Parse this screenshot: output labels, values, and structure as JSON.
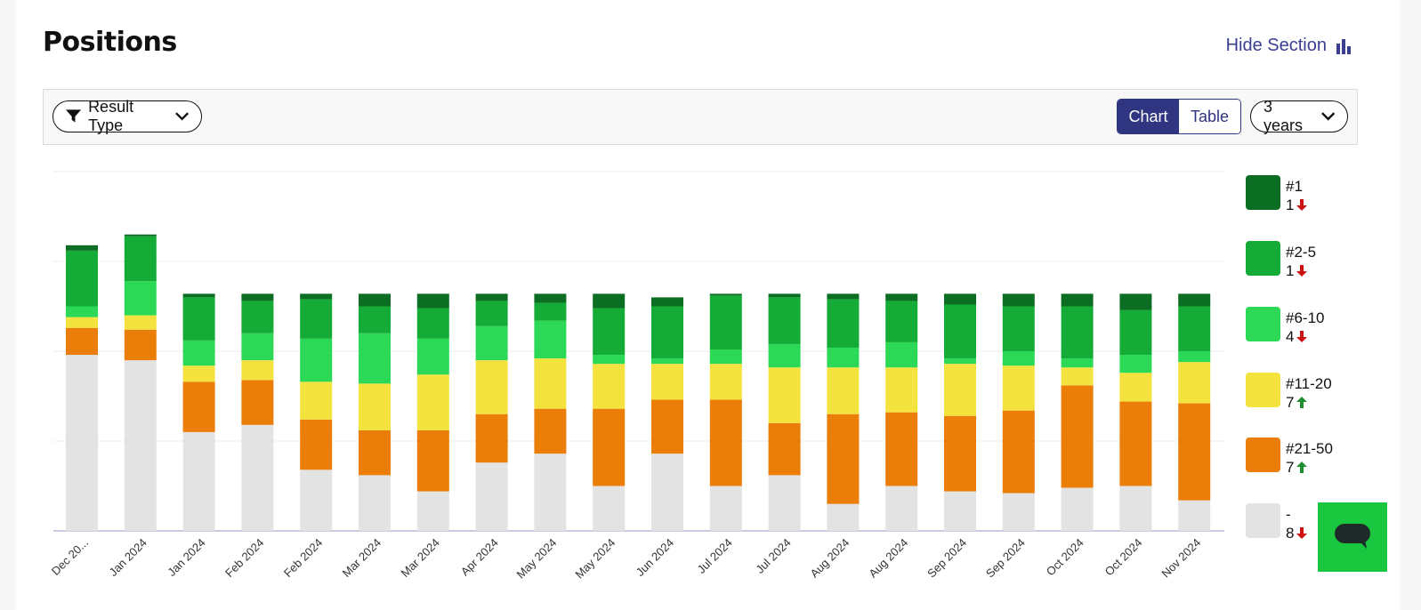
{
  "header": {
    "title": "Positions",
    "hide_label": "Hide Section"
  },
  "toolbar": {
    "filter_label": "Result Type",
    "chart_label": "Chart",
    "table_label": "Table",
    "period_label": "3 years"
  },
  "legend": [
    {
      "label": "#1",
      "count": "1",
      "trend": "down",
      "color": "#0c6e23"
    },
    {
      "label": "#2-5",
      "count": "1",
      "trend": "down",
      "color": "#14ab36"
    },
    {
      "label": "#6-10",
      "count": "4",
      "trend": "down",
      "color": "#2bd957"
    },
    {
      "label": "#11-20",
      "count": "7",
      "trend": "up",
      "color": "#f4e33f"
    },
    {
      "label": "#21-50",
      "count": "7",
      "trend": "up",
      "color": "#eb7d09"
    },
    {
      "label": "-",
      "count": "8",
      "trend": "down",
      "color": "#e3e3e3"
    }
  ],
  "trend_colors": {
    "down": "#cc1111",
    "up": "#1f8f2f"
  },
  "chart_data": {
    "type": "bar",
    "stacked": true,
    "grid": true,
    "ylim": [
      0,
      20
    ],
    "categories": [
      "Dec 20...",
      "Jan 2024",
      "Jan 2024",
      "Feb 2024",
      "Feb 2024",
      "Mar 2024",
      "Mar 2024",
      "Apr 2024",
      "May 2024",
      "May 2024",
      "Jun 2024",
      "Jul 2024",
      "Jul 2024",
      "Aug 2024",
      "Aug 2024",
      "Sep 2024",
      "Sep 2024",
      "Oct 2024",
      "Oct 2024",
      "Nov 2024"
    ],
    "series": [
      {
        "name": "-",
        "values": [
          9.8,
          9.5,
          5.5,
          5.9,
          3.4,
          3.1,
          2.2,
          3.8,
          4.3,
          2.5,
          4.3,
          2.5,
          3.1,
          1.5,
          2.5,
          2.2,
          2.1,
          2.4,
          2.5,
          1.7
        ]
      },
      {
        "name": "#21-50",
        "values": [
          1.5,
          1.7,
          2.8,
          2.5,
          2.8,
          2.5,
          3.4,
          2.7,
          2.5,
          4.3,
          3.0,
          4.8,
          2.9,
          5.0,
          4.1,
          4.2,
          4.6,
          5.7,
          4.7,
          5.4
        ]
      },
      {
        "name": "#11-20",
        "values": [
          0.6,
          0.8,
          0.9,
          1.1,
          2.1,
          2.6,
          3.1,
          3.0,
          2.8,
          2.5,
          2.0,
          2.0,
          3.1,
          2.6,
          2.5,
          2.9,
          2.5,
          1.0,
          1.6,
          2.3
        ]
      },
      {
        "name": "#6-10",
        "values": [
          0.6,
          1.9,
          1.4,
          1.5,
          2.4,
          2.8,
          2.0,
          1.9,
          2.1,
          0.5,
          0.3,
          0.8,
          1.3,
          1.1,
          1.4,
          0.3,
          0.8,
          0.5,
          1.0,
          0.6
        ]
      },
      {
        "name": "#2-5",
        "values": [
          3.1,
          2.5,
          2.4,
          1.8,
          2.2,
          1.5,
          1.7,
          1.4,
          1.0,
          2.6,
          2.9,
          3.0,
          2.6,
          2.7,
          2.3,
          3.0,
          2.5,
          2.9,
          2.5,
          2.5
        ]
      },
      {
        "name": "#1",
        "values": [
          0.3,
          0.1,
          0.2,
          0.4,
          0.3,
          0.7,
          0.8,
          0.4,
          0.5,
          0.8,
          0.5,
          0.1,
          0.2,
          0.3,
          0.4,
          0.6,
          0.7,
          0.7,
          0.9,
          0.7
        ]
      }
    ]
  }
}
